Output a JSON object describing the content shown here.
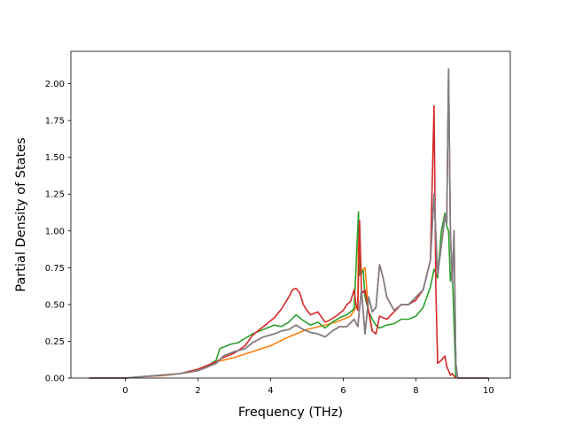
{
  "chart_data": {
    "type": "line",
    "title": "",
    "xlabel": "Frequency (THz)",
    "ylabel": "Partial Density of States",
    "xlim": [
      -1.5,
      10.6
    ],
    "ylim": [
      0,
      2.22
    ],
    "xticks": [
      0,
      2,
      4,
      6,
      8,
      10
    ],
    "xtick_labels": [
      "0",
      "2",
      "4",
      "6",
      "8",
      "10"
    ],
    "yticks": [
      0,
      0.25,
      0.5,
      0.75,
      1.0,
      1.25,
      1.5,
      1.75,
      2.0
    ],
    "ytick_labels": [
      "0.00",
      "0.25",
      "0.50",
      "0.75",
      "1.00",
      "1.25",
      "1.50",
      "1.75",
      "2.00"
    ],
    "grid": false,
    "legend": "none",
    "series": [
      {
        "color": "#ff7f0e",
        "x": [
          -1.0,
          0.0,
          0.5,
          1.0,
          1.5,
          2.0,
          2.3,
          2.5,
          3.0,
          3.5,
          4.0,
          4.5,
          5.0,
          5.5,
          5.8,
          6.0,
          6.2,
          6.4,
          6.42,
          6.5,
          6.55,
          6.6,
          6.7,
          6.8
        ],
        "y": [
          0.0,
          0.0,
          0.01,
          0.015,
          0.03,
          0.05,
          0.08,
          0.11,
          0.14,
          0.18,
          0.22,
          0.28,
          0.33,
          0.36,
          0.38,
          0.4,
          0.42,
          0.5,
          1.05,
          0.72,
          0.74,
          0.75,
          0.45,
          0.32
        ]
      },
      {
        "color": "#2ca02c",
        "x": [
          -1.0,
          0.0,
          0.5,
          1.0,
          1.5,
          2.0,
          2.3,
          2.5,
          2.6,
          2.9,
          3.1,
          3.3,
          3.5,
          3.7,
          3.9,
          4.1,
          4.3,
          4.5,
          4.7,
          4.9,
          5.1,
          5.3,
          5.5,
          5.7,
          5.9,
          6.1,
          6.3,
          6.42,
          6.45,
          6.55,
          6.6,
          6.7,
          6.8,
          6.9,
          7.0,
          7.2,
          7.4,
          7.6,
          7.8,
          8.0,
          8.2,
          8.4,
          8.5,
          8.6,
          8.7,
          8.8,
          8.85,
          8.9,
          8.95,
          9.0,
          9.1
        ],
        "y": [
          0.0,
          0.0,
          0.01,
          0.02,
          0.03,
          0.06,
          0.09,
          0.12,
          0.2,
          0.23,
          0.24,
          0.27,
          0.3,
          0.32,
          0.34,
          0.36,
          0.35,
          0.38,
          0.43,
          0.39,
          0.36,
          0.38,
          0.34,
          0.38,
          0.41,
          0.43,
          0.47,
          1.13,
          0.7,
          0.73,
          0.55,
          0.45,
          0.4,
          0.36,
          0.34,
          0.36,
          0.37,
          0.4,
          0.4,
          0.42,
          0.48,
          0.62,
          0.74,
          0.68,
          1.0,
          1.12,
          1.03,
          1.0,
          0.66,
          0.75,
          0.0
        ]
      },
      {
        "color": "#d62728",
        "x": [
          -1.0,
          0.0,
          0.5,
          1.0,
          1.5,
          2.0,
          2.3,
          2.5,
          2.7,
          3.0,
          3.3,
          3.5,
          3.8,
          4.1,
          4.3,
          4.5,
          4.6,
          4.7,
          4.8,
          4.9,
          5.0,
          5.1,
          5.3,
          5.5,
          5.6,
          5.8,
          6.0,
          6.1,
          6.2,
          6.3,
          6.35,
          6.4,
          6.45,
          6.5,
          6.55,
          6.6,
          6.7,
          6.8,
          6.9,
          7.0,
          7.2,
          7.4,
          7.6,
          7.8,
          8.0,
          8.2,
          8.4,
          8.5,
          8.55,
          8.6,
          8.7,
          8.8,
          8.85,
          8.9,
          8.95,
          9.0,
          9.1
        ],
        "y": [
          0.0,
          0.0,
          0.01,
          0.02,
          0.03,
          0.06,
          0.09,
          0.11,
          0.14,
          0.17,
          0.22,
          0.29,
          0.35,
          0.41,
          0.47,
          0.55,
          0.6,
          0.61,
          0.58,
          0.5,
          0.46,
          0.43,
          0.45,
          0.38,
          0.39,
          0.42,
          0.46,
          0.5,
          0.52,
          0.6,
          0.5,
          0.46,
          1.07,
          0.6,
          0.58,
          0.6,
          0.45,
          0.32,
          0.3,
          0.42,
          0.4,
          0.45,
          0.5,
          0.5,
          0.53,
          0.6,
          0.8,
          1.85,
          0.6,
          0.1,
          0.12,
          0.15,
          0.08,
          0.05,
          0.02,
          0.03,
          0.0
        ]
      },
      {
        "color": "#8c564b",
        "x": [
          -1.0,
          0.0,
          0.5,
          1.0,
          1.5,
          2.0,
          2.3,
          2.5,
          2.7,
          3.0,
          3.3,
          3.5,
          3.8,
          4.1,
          4.3,
          4.5,
          4.7,
          4.9,
          5.1,
          5.3,
          5.5,
          5.7,
          5.9,
          6.1,
          6.3,
          6.4,
          6.5,
          6.6,
          6.7,
          6.8,
          6.9,
          7.0,
          7.1,
          7.2,
          7.4,
          7.6,
          7.8,
          8.0,
          8.2,
          8.4,
          8.5,
          8.6,
          8.7,
          8.8,
          8.85,
          8.9,
          8.95,
          9.0,
          9.05,
          9.1,
          9.15,
          10.0
        ],
        "y": [
          0.0,
          0.0,
          0.01,
          0.02,
          0.03,
          0.05,
          0.08,
          0.1,
          0.15,
          0.18,
          0.2,
          0.24,
          0.28,
          0.3,
          0.32,
          0.33,
          0.36,
          0.33,
          0.31,
          0.3,
          0.28,
          0.32,
          0.35,
          0.35,
          0.4,
          0.35,
          0.6,
          0.3,
          0.55,
          0.45,
          0.48,
          0.77,
          0.68,
          0.55,
          0.46,
          0.5,
          0.5,
          0.55,
          0.6,
          0.8,
          1.25,
          0.7,
          0.9,
          1.1,
          1.05,
          2.1,
          1.0,
          0.65,
          1.0,
          0.1,
          0.0,
          0.0
        ]
      },
      {
        "color": "#e377c2",
        "x": [
          -1.0,
          0.0,
          0.5,
          1.0,
          1.5,
          2.0,
          2.3,
          2.5,
          2.7,
          3.0,
          3.3,
          3.5,
          3.8,
          4.1,
          4.3,
          4.5,
          4.7,
          4.9,
          5.1,
          5.3,
          5.5,
          5.7,
          5.9,
          6.1,
          6.3,
          6.4,
          6.5,
          6.6,
          6.7,
          6.8,
          6.9,
          7.0,
          7.1,
          7.2,
          7.4,
          7.6,
          7.8,
          8.0,
          8.2,
          8.4,
          8.5,
          8.6,
          8.7,
          8.8,
          8.85,
          8.9,
          8.95,
          9.0,
          9.05,
          9.1,
          9.15,
          10.0
        ],
        "y": [
          0.0,
          0.0,
          0.01,
          0.02,
          0.03,
          0.05,
          0.08,
          0.1,
          0.15,
          0.18,
          0.2,
          0.24,
          0.28,
          0.3,
          0.32,
          0.33,
          0.36,
          0.33,
          0.31,
          0.3,
          0.28,
          0.32,
          0.35,
          0.35,
          0.4,
          0.35,
          0.6,
          0.3,
          0.55,
          0.45,
          0.48,
          0.77,
          0.68,
          0.55,
          0.46,
          0.5,
          0.5,
          0.55,
          0.6,
          0.8,
          1.25,
          0.7,
          0.9,
          1.1,
          1.05,
          2.1,
          1.0,
          0.65,
          1.0,
          0.1,
          0.0,
          0.0
        ]
      },
      {
        "color": "#7f7f7f",
        "x": [
          -1.0,
          0.0,
          0.5,
          1.0,
          1.5,
          2.0,
          2.3,
          2.5,
          2.7,
          3.0,
          3.3,
          3.5,
          3.8,
          4.1,
          4.3,
          4.5,
          4.7,
          4.9,
          5.1,
          5.3,
          5.5,
          5.7,
          5.9,
          6.1,
          6.3,
          6.4,
          6.5,
          6.6,
          6.7,
          6.8,
          6.9,
          7.0,
          7.1,
          7.2,
          7.4,
          7.6,
          7.8,
          8.0,
          8.2,
          8.4,
          8.5,
          8.6,
          8.7,
          8.8,
          8.85,
          8.9,
          8.95,
          9.0,
          9.05,
          9.1,
          9.15,
          10.0
        ],
        "y": [
          0.0,
          0.0,
          0.01,
          0.02,
          0.03,
          0.05,
          0.08,
          0.1,
          0.15,
          0.18,
          0.2,
          0.24,
          0.28,
          0.3,
          0.32,
          0.33,
          0.36,
          0.33,
          0.31,
          0.3,
          0.28,
          0.32,
          0.35,
          0.35,
          0.4,
          0.35,
          0.6,
          0.3,
          0.55,
          0.45,
          0.48,
          0.77,
          0.68,
          0.55,
          0.46,
          0.5,
          0.5,
          0.55,
          0.6,
          0.8,
          1.25,
          0.7,
          0.9,
          1.1,
          1.05,
          2.1,
          1.0,
          0.65,
          1.0,
          0.1,
          0.0,
          0.0
        ]
      }
    ]
  }
}
